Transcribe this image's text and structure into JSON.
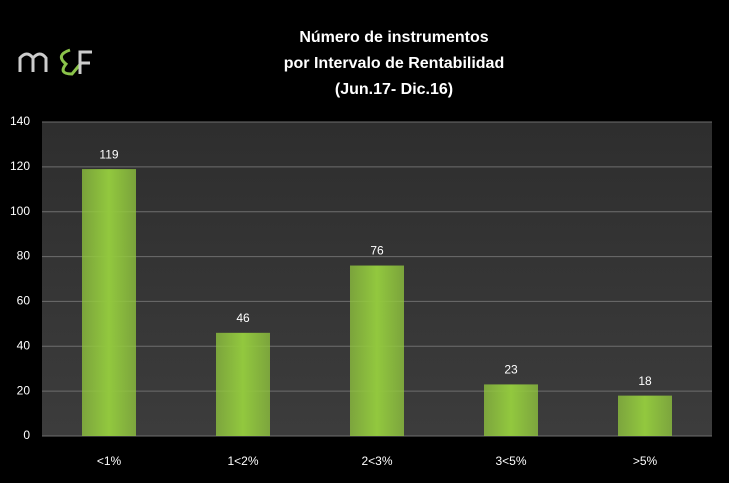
{
  "chart_data": {
    "type": "bar",
    "title": [
      "Número de instrumentos",
      "por Intervalo de Rentabilidad",
      "(Jun.17- Dic.16)"
    ],
    "categories": [
      "<1%",
      "1<2%",
      "2<3%",
      "3<5%",
      ">5%"
    ],
    "values": [
      119,
      46,
      76,
      23,
      18
    ],
    "color": "#92c83e",
    "ylim": [
      0,
      140
    ],
    "yticks": [
      0,
      20,
      40,
      60,
      80,
      100,
      120,
      140
    ],
    "grid": true
  }
}
